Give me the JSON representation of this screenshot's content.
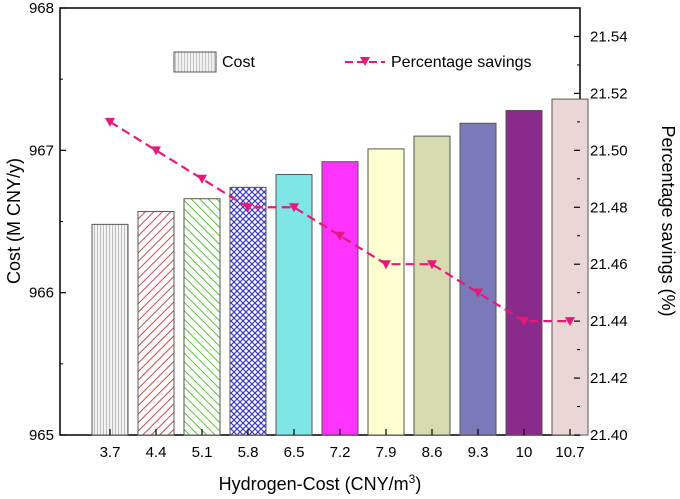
{
  "chart_data": {
    "type": "bar",
    "categories": [
      "3.7",
      "4.4",
      "5.1",
      "5.8",
      "6.5",
      "7.2",
      "7.9",
      "8.6",
      "9.3",
      "10",
      "10.7"
    ],
    "series": [
      {
        "name": "Cost",
        "type": "bar",
        "axis": "left",
        "values": [
          966.48,
          966.57,
          966.66,
          966.74,
          966.83,
          966.92,
          967.01,
          967.1,
          967.19,
          967.28,
          967.36
        ],
        "colors": [
          "#c8c8c8",
          "#c0504d",
          "#5fbf3f",
          "#3d3db8",
          "#7fe6e6",
          "#ff33ff",
          "#ffffd0",
          "#d8dbb0",
          "#7a7ab8",
          "#8a2a8a",
          "#ebd6d6"
        ],
        "patterns": [
          "vlines",
          "diag",
          "diag",
          "cross",
          "solid",
          "solid",
          "solid",
          "solid",
          "solid",
          "solid",
          "solid"
        ]
      },
      {
        "name": "Percentage savings",
        "type": "line",
        "axis": "right",
        "color": "#e6197a",
        "values": [
          21.51,
          21.5,
          21.49,
          21.48,
          21.48,
          21.47,
          21.46,
          21.46,
          21.45,
          21.44,
          21.44
        ]
      }
    ],
    "xlabel_main": "Hydrogen-Cost (CNY/m",
    "xlabel_sup": "3",
    "xlabel_end": ")",
    "ylabel_left": "Cost (M CNY/y)",
    "ylabel_right": "Percentage savings (%)",
    "ylim_left": [
      965,
      968
    ],
    "yticks_left": [
      "965",
      "966",
      "967",
      "968"
    ],
    "ylim_right": [
      21.4,
      21.55
    ],
    "yticks_right": [
      "21.40",
      "21.42",
      "21.44",
      "21.46",
      "21.48",
      "21.50",
      "21.52",
      "21.54"
    ],
    "legend": {
      "cost_label": "Cost",
      "savings_label": "Percentage savings",
      "placement": "top"
    },
    "grid": false
  }
}
